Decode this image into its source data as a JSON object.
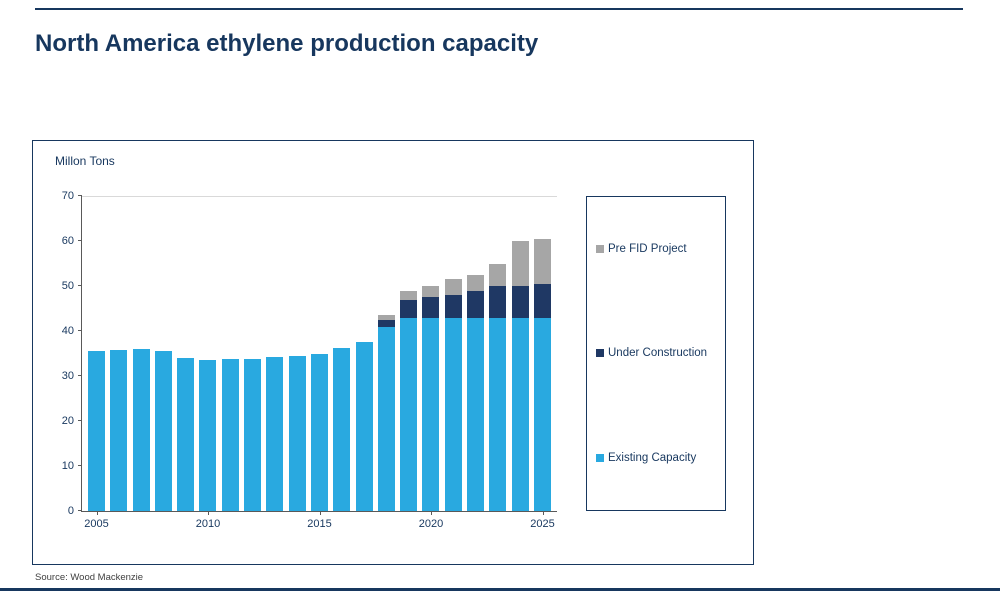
{
  "page": {
    "title": "North America ethylene production capacity",
    "source": "Source: Wood Mackenzie"
  },
  "chart_data": {
    "type": "bar",
    "stacked": true,
    "title": "North America ethylene production capacity",
    "xlabel": "",
    "ylabel": "Millon Tons",
    "ylim": [
      0,
      70
    ],
    "yticks": [
      0,
      10,
      20,
      30,
      40,
      50,
      60,
      70
    ],
    "xticks": [
      2005,
      2010,
      2015,
      2020,
      2025
    ],
    "grid": "top-line-only",
    "legend_position": "right-box",
    "categories": [
      2005,
      2006,
      2007,
      2008,
      2009,
      2010,
      2011,
      2012,
      2013,
      2014,
      2015,
      2016,
      2017,
      2018,
      2019,
      2020,
      2021,
      2022,
      2023,
      2024,
      2025
    ],
    "series": [
      {
        "name": "Existing Capacity",
        "color": "#29A9E0",
        "values": [
          35.5,
          35.8,
          36.0,
          35.5,
          34.0,
          33.5,
          33.7,
          33.8,
          34.2,
          34.5,
          35.0,
          36.2,
          37.5,
          41.0,
          43.0,
          43.0,
          43.0,
          43.0,
          43.0,
          43.0,
          43.0
        ]
      },
      {
        "name": "Under Construction",
        "color": "#1F3864",
        "values": [
          0,
          0,
          0,
          0,
          0,
          0,
          0,
          0,
          0,
          0,
          0,
          0,
          0,
          1.5,
          4.0,
          4.5,
          5.0,
          6.0,
          7.0,
          7.0,
          7.5
        ]
      },
      {
        "name": "Pre FID Project",
        "color": "#A6A6A6",
        "values": [
          0,
          0,
          0,
          0,
          0,
          0,
          0,
          0,
          0,
          0,
          0,
          0,
          0,
          1.0,
          2.0,
          2.5,
          3.5,
          3.5,
          5.0,
          10.0,
          10.0
        ]
      }
    ]
  }
}
